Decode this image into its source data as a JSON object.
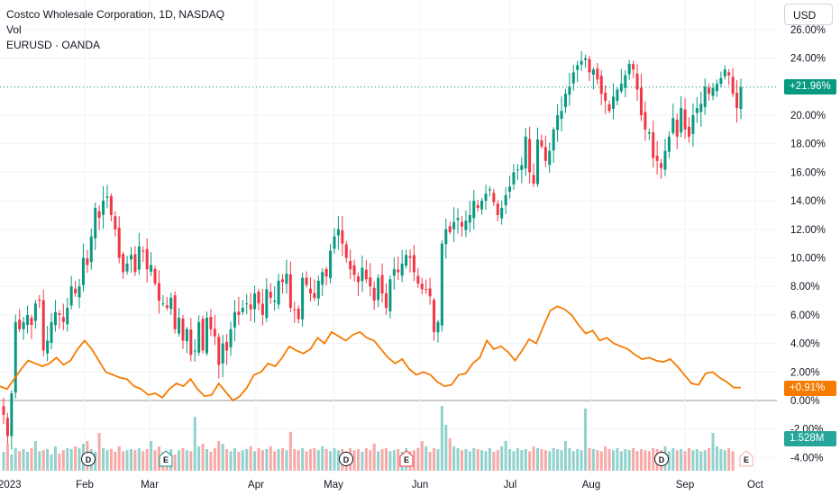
{
  "legend": {
    "main": "Costco Wholesale Corporation, 1D, NASDAQ",
    "volume": "Vol",
    "compare": "EURUSD · OANDA"
  },
  "currency": "USD",
  "tags": {
    "costco_change": "+21.96%",
    "eurusd_change": "+0.91%",
    "volume_value": "1.528M"
  },
  "colors": {
    "up": "#089981",
    "down": "#f23645",
    "volume_up": "#92d2cc",
    "volume_down": "#f7a9a7",
    "compare_line": "#f57c00",
    "grid": "#f0f3fa",
    "zero_line": "#9598a1"
  },
  "chart_data": {
    "type": "candlestick",
    "y_axis": {
      "unit": "percent",
      "ticks": [
        "26.00%",
        "24.00%",
        "22.00%",
        "20.00%",
        "18.00%",
        "16.00%",
        "14.00%",
        "12.00%",
        "10.00%",
        "8.00%",
        "6.00%",
        "4.00%",
        "2.00%",
        "0.00%",
        "-2.00%",
        "-4.00%"
      ],
      "range": [
        -4.5,
        27
      ]
    },
    "x_axis": {
      "ticks": [
        "2023",
        "Feb",
        "Mar",
        "Apr",
        "May",
        "Jun",
        "Jul",
        "Aug",
        "Sep",
        "Oct"
      ]
    },
    "costco_close_percent": [
      -1.0,
      -2.5,
      0.5,
      5.5,
      5.0,
      5.5,
      6.0,
      5.3,
      6.8,
      7.0,
      3.5,
      4.2,
      5.5,
      6.2,
      6.0,
      5.5,
      6.5,
      8.0,
      7.5,
      8.0,
      10.0,
      9.5,
      11.5,
      13.5,
      12.8,
      14.0,
      14.3,
      13.0,
      12.0,
      10.0,
      9.0,
      9.6,
      10.2,
      9.0,
      10.8,
      10.5,
      9.2,
      9.5,
      8.2,
      7.0,
      6.8,
      6.5,
      7.2,
      5.0,
      5.8,
      4.2,
      5.0,
      3.2,
      3.5,
      5.5,
      3.5,
      5.8,
      5.0,
      4.5,
      2.5,
      4.0,
      3.5,
      5.0,
      6.2,
      6.0,
      6.5,
      6.8,
      6.4,
      7.5,
      6.8,
      6.0,
      7.8,
      7.2,
      7.0,
      8.4,
      8.3,
      8.9,
      6.5,
      6.4,
      5.7,
      8.6,
      8.1,
      7.5,
      7.2,
      8.4,
      9.0,
      8.7,
      10.5,
      11.5,
      12.0,
      11.0,
      10.0,
      9.2,
      8.8,
      8.3,
      9.3,
      8.5,
      8.0,
      7.0,
      8.6,
      7.5,
      6.5,
      8.5,
      9.2,
      9.0,
      9.6,
      10.2,
      10.0,
      9.0,
      8.2,
      7.8,
      7.8,
      7.3,
      4.8,
      5.5,
      11.0,
      12.0,
      11.8,
      12.5,
      12.8,
      12.2,
      12.6,
      13.0,
      14.0,
      13.5,
      14.0,
      14.5,
      14.8,
      13.9,
      13.0,
      13.5,
      14.4,
      15.0,
      16.0,
      16.2,
      16.5,
      18.5,
      16.0,
      15.2,
      18.3,
      17.8,
      16.8,
      17.5,
      19.0,
      20.0,
      20.3,
      21.5,
      22.0,
      23.0,
      23.5,
      23.8,
      24.0,
      23.0,
      23.2,
      22.5,
      21.5,
      21.0,
      20.3,
      21.3,
      21.8,
      22.2,
      22.8,
      23.6,
      23.2,
      21.8,
      20.0,
      19.0,
      18.8,
      17.0,
      16.8,
      16.3,
      17.5,
      18.5,
      19.8,
      18.5,
      20.5,
      19.0,
      18.5,
      20.0,
      20.5,
      20.8,
      22.0,
      21.5,
      21.9,
      22.2,
      22.6,
      23.2,
      22.8,
      21.5,
      20.5,
      21.96
    ],
    "volume_relative": [
      0.35,
      0.5,
      0.3,
      0.42,
      0.36,
      0.4,
      0.35,
      0.42,
      0.55,
      0.36,
      0.38,
      0.4,
      0.3,
      0.45,
      0.32,
      0.38,
      0.42,
      0.4,
      0.45,
      0.42,
      0.5,
      0.55,
      0.4,
      0.35,
      0.7,
      0.42,
      0.38,
      0.4,
      0.35,
      0.45,
      0.36,
      0.38,
      0.4,
      0.38,
      0.42,
      0.36,
      0.4,
      0.55,
      0.38,
      0.45,
      0.35,
      0.36,
      0.4,
      0.3,
      0.38,
      0.42,
      0.38,
      0.36,
      1.0,
      0.45,
      0.5,
      0.4,
      0.35,
      0.42,
      0.55,
      0.5,
      0.4,
      0.36,
      0.42,
      0.35,
      0.38,
      0.4,
      0.45,
      0.36,
      0.42,
      0.38,
      0.4,
      0.45,
      0.36,
      0.4,
      0.42,
      0.38,
      0.72,
      0.4,
      0.38,
      0.42,
      0.36,
      0.4,
      0.42,
      0.38,
      0.45,
      0.4,
      0.36,
      0.42,
      0.38,
      0.4,
      0.36,
      0.42,
      0.38,
      0.4,
      0.35,
      0.42,
      0.38,
      0.5,
      0.36,
      0.4,
      0.42,
      0.36,
      0.38,
      0.4,
      0.35,
      0.42,
      0.36,
      0.38,
      0.42,
      0.55,
      0.45,
      0.35,
      0.42,
      0.4,
      1.2,
      0.85,
      0.6,
      0.45,
      0.42,
      0.38,
      0.4,
      0.36,
      0.42,
      0.4,
      0.38,
      0.36,
      0.42,
      0.35,
      0.38,
      0.45,
      0.55,
      0.4,
      0.36,
      0.42,
      0.38,
      0.4,
      0.36,
      0.45,
      0.42,
      0.4,
      0.38,
      0.36,
      0.42,
      0.4,
      0.38,
      0.55,
      0.42,
      0.36,
      0.4,
      0.38,
      1.15,
      0.42,
      0.4,
      0.38,
      0.36,
      0.45,
      0.4,
      0.38,
      0.42,
      0.36,
      0.4,
      0.38,
      0.42,
      0.36,
      0.4,
      0.38,
      0.36,
      0.42,
      0.4,
      0.38,
      0.45,
      0.36,
      0.42,
      0.38,
      0.4,
      0.36,
      0.42,
      0.38,
      0.4,
      0.36,
      0.38,
      0.42,
      0.7,
      0.45,
      0.4,
      0.38,
      0.42,
      0.36
    ],
    "eurusd_percent": [
      1.0,
      0.8,
      1.5,
      2.2,
      2.8,
      2.6,
      2.4,
      2.6,
      3.0,
      2.5,
      2.8,
      3.6,
      4.2,
      3.6,
      2.8,
      2.0,
      1.8,
      1.6,
      1.5,
      1.0,
      0.8,
      0.4,
      0.5,
      0.2,
      0.8,
      1.2,
      1.0,
      1.5,
      0.8,
      0.3,
      0.4,
      1.2,
      0.6,
      0.0,
      0.3,
      0.9,
      1.8,
      2.0,
      2.6,
      2.4,
      3.0,
      3.8,
      3.5,
      3.3,
      3.6,
      4.4,
      4.0,
      4.8,
      4.5,
      4.2,
      4.6,
      4.8,
      4.4,
      4.2,
      3.6,
      3.0,
      2.6,
      2.9,
      2.2,
      1.8,
      2.0,
      1.8,
      1.3,
      1.0,
      1.1,
      1.8,
      1.9,
      2.6,
      3.0,
      4.2,
      3.6,
      3.8,
      3.4,
      2.8,
      3.5,
      4.3,
      4.0,
      5.2,
      6.3,
      6.6,
      6.4,
      6.0,
      5.3,
      4.7,
      4.9,
      4.2,
      4.4,
      4.0,
      3.8,
      3.6,
      3.2,
      2.9,
      3.0,
      2.8,
      2.7,
      2.9,
      2.4,
      1.8,
      1.2,
      1.1,
      1.9,
      2.0,
      1.6,
      1.3,
      0.9,
      0.91
    ],
    "event_markers": [
      {
        "label": "D",
        "kind": "dividend"
      },
      {
        "label": "E",
        "kind": "earnings"
      },
      {
        "label": "D",
        "kind": "dividend"
      },
      {
        "label": "E",
        "kind": "earnings"
      },
      {
        "label": "D",
        "kind": "dividend"
      },
      {
        "label": "E",
        "kind": "earnings-upcoming"
      }
    ]
  }
}
